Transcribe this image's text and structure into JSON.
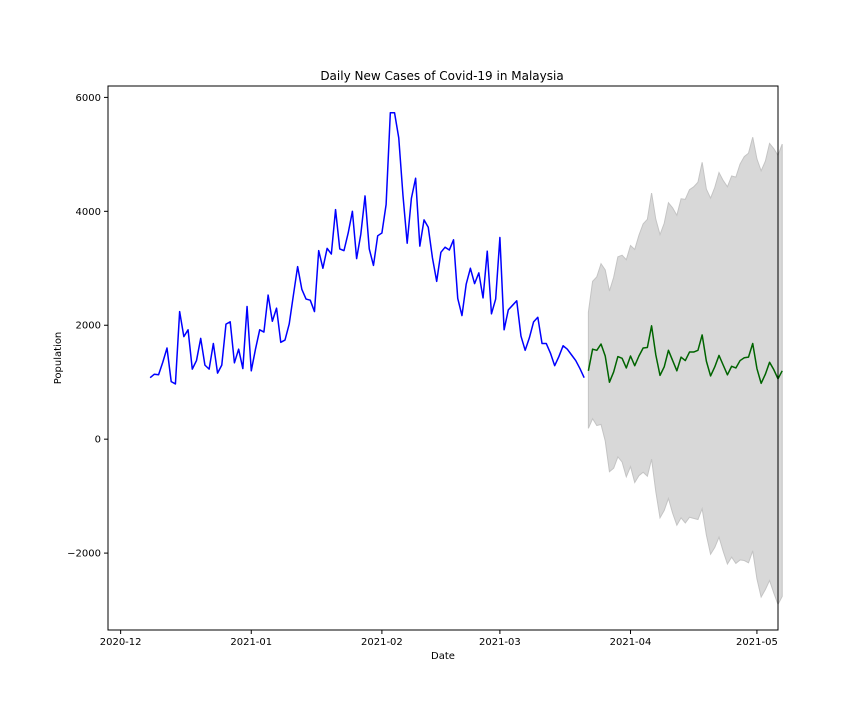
{
  "chart_data": {
    "type": "line",
    "title": "Daily New Cases of Covid-19 in Malaysia",
    "xlabel": "Date",
    "ylabel": "Population",
    "xlim": [
      "2020-11-28",
      "2021-05-06"
    ],
    "ylim": [
      -3350,
      6200
    ],
    "x_ticks": [
      "2020-12",
      "2021-01",
      "2021-02",
      "2021-03",
      "2021-04",
      "2021-05"
    ],
    "x_tick_dates": [
      "2020-12-01",
      "2021-01-01",
      "2021-02-01",
      "2021-03-01",
      "2021-04-01",
      "2021-05-01"
    ],
    "y_ticks": [
      -2000,
      0,
      2000,
      4000,
      6000
    ],
    "y_tick_labels": [
      "−2000",
      "0",
      "2000",
      "4000",
      "6000"
    ],
    "grid": false,
    "colors": {
      "actual": "#0000ff",
      "forecast": "#006400",
      "interval": "#d8d8d8",
      "interval_edge": "#c4c4c4"
    },
    "series": [
      {
        "x_start": "2020-12-08",
        "values": [
          1080,
          1140,
          1130,
          1350,
          1600,
          1010,
          970,
          2240,
          1800,
          1920,
          1230,
          1380,
          1770,
          1300,
          1230,
          1680,
          1160,
          1300,
          2020,
          2060,
          1340,
          1580,
          1240,
          2330,
          1200,
          1580,
          1920,
          1880,
          2530,
          2070,
          2300,
          1700,
          1740,
          2020,
          2530,
          3030,
          2630,
          2460,
          2440,
          2240,
          3310,
          3000,
          3350,
          3250,
          4030,
          3340,
          3310,
          3620,
          4000,
          3170,
          3600,
          4270,
          3340,
          3050,
          3570,
          3620,
          4120,
          5730,
          5730,
          5290,
          4280,
          3440,
          4230,
          4580,
          3390,
          3850,
          3720,
          3180,
          2770,
          3280,
          3370,
          3320,
          3500,
          2470,
          2170,
          2720,
          3000,
          2730,
          2920,
          2480,
          3300,
          2200,
          2460,
          3540,
          1920,
          2270,
          2350,
          2430,
          1810,
          1560,
          1780,
          2060,
          2140,
          1680,
          1680,
          1510,
          1290,
          1450,
          1640,
          1580,
          1480,
          1380,
          1240,
          1080
        ]
      },
      {
        "x_start": "2021-03-22",
        "values": [
          1200,
          1580,
          1560,
          1670,
          1460,
          1000,
          1180,
          1450,
          1420,
          1250,
          1460,
          1290,
          1460,
          1600,
          1610,
          1990,
          1480,
          1120,
          1270,
          1560,
          1380,
          1200,
          1440,
          1380,
          1530,
          1530,
          1560,
          1830,
          1370,
          1110,
          1270,
          1470,
          1300,
          1130,
          1280,
          1250,
          1380,
          1430,
          1440,
          1680,
          1240,
          980,
          1140,
          1350,
          1220,
          1060,
          1200
        ]
      }
    ],
    "interval_upper": [
      2230,
      2770,
      2850,
      3080,
      2970,
      2600,
      2840,
      3200,
      3230,
      3150,
      3400,
      3330,
      3580,
      3780,
      3860,
      4320,
      3860,
      3590,
      3790,
      4150,
      4060,
      3930,
      4220,
      4210,
      4380,
      4430,
      4510,
      4860,
      4390,
      4230,
      4420,
      4680,
      4540,
      4430,
      4620,
      4600,
      4830,
      4960,
      5020,
      5300,
      4920,
      4710,
      4880,
      5190,
      5100,
      4980,
      5180
    ],
    "interval_lower": [
      190,
      360,
      240,
      260,
      -30,
      -570,
      -510,
      -310,
      -400,
      -660,
      -480,
      -760,
      -640,
      -580,
      -650,
      -350,
      -920,
      -1380,
      -1250,
      -1040,
      -1300,
      -1510,
      -1380,
      -1470,
      -1370,
      -1390,
      -1410,
      -1220,
      -1680,
      -2020,
      -1900,
      -1720,
      -1970,
      -2190,
      -2070,
      -2180,
      -2120,
      -2130,
      -2170,
      -1960,
      -2450,
      -2770,
      -2640,
      -2480,
      -2700,
      -2900,
      -2760
    ]
  }
}
